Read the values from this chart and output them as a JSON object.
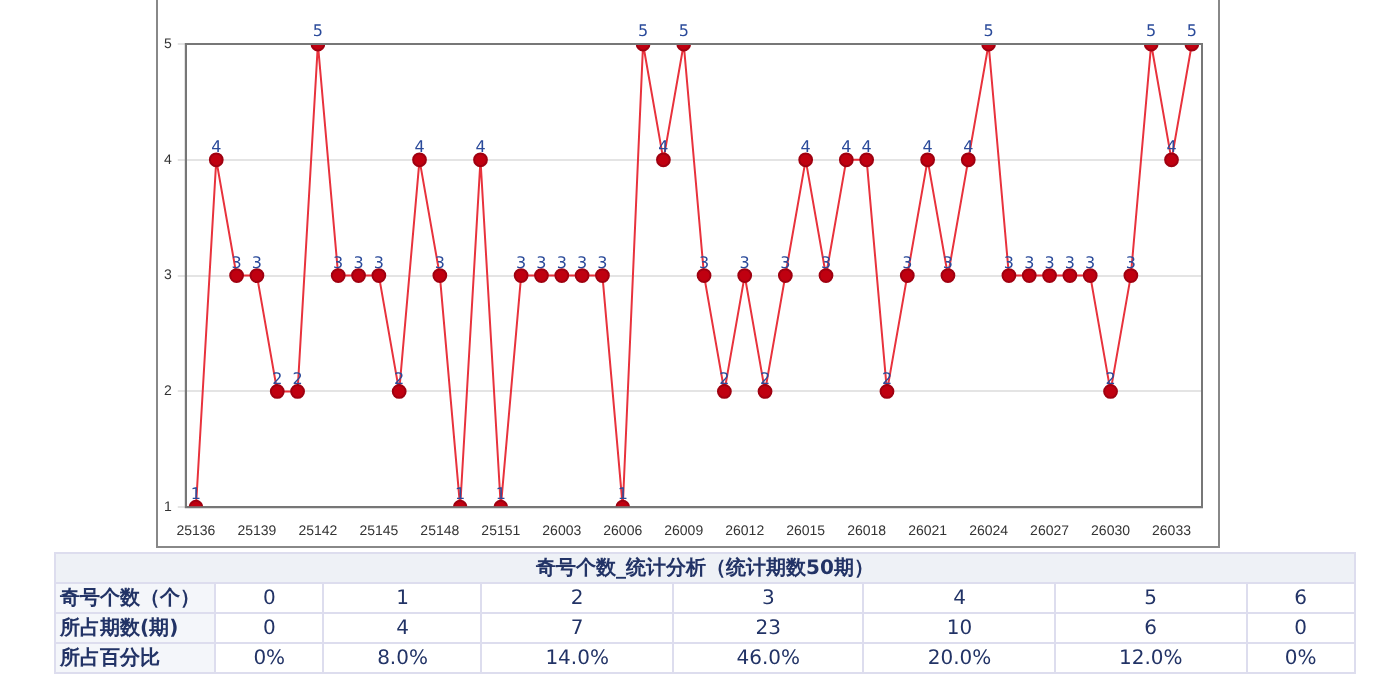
{
  "chart_data": {
    "type": "line",
    "categories": [
      "25136",
      null,
      null,
      "25139",
      null,
      null,
      "25142",
      null,
      null,
      "25145",
      null,
      null,
      "25148",
      null,
      null,
      "25151",
      null,
      null,
      "26003",
      null,
      null,
      "26006",
      null,
      null,
      "26009",
      null,
      null,
      "26012",
      null,
      null,
      "26015",
      null,
      null,
      "26018",
      null,
      null,
      "26021",
      null,
      null,
      "26024",
      null,
      null,
      "26027",
      null,
      null,
      "26030",
      null,
      null,
      "26033",
      null
    ],
    "series": [
      {
        "color": "#e8323c",
        "values": [
          1,
          4,
          3,
          3,
          2,
          2,
          5,
          3,
          3,
          3,
          2,
          4,
          3,
          1,
          4,
          1,
          3,
          3,
          3,
          3,
          3,
          1,
          5,
          4,
          5,
          3,
          2,
          3,
          2,
          3,
          4,
          3,
          4,
          4,
          2,
          3,
          4,
          3,
          4,
          5,
          3,
          3,
          3,
          3,
          3,
          2,
          3,
          5,
          4,
          5
        ]
      }
    ],
    "ylim": [
      1,
      5
    ],
    "yticks": [
      1,
      2,
      3,
      4,
      5
    ],
    "grid": "y",
    "legend": false,
    "marker": "circle",
    "line_style": "solid",
    "data_labels": true,
    "annotations": [
      "奇号个数_统计分析（统计期数50期）",
      "奇号个数（个）",
      "0",
      "1",
      "2",
      "3",
      "4",
      "5",
      "6",
      "所占期数(期)",
      "0",
      "4",
      "7",
      "23",
      "10",
      "6",
      "0",
      "所占百分比",
      "0%",
      "8.0%",
      "14.0%",
      "46.0%",
      "20.0%",
      "12.0%",
      "0%"
    ]
  }
}
